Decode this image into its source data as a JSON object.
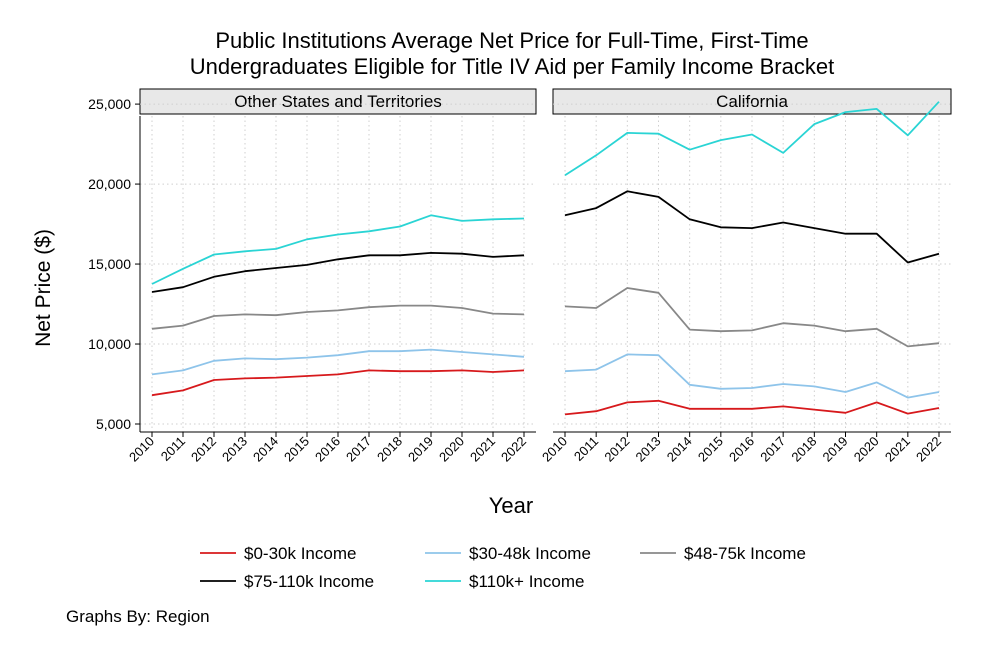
{
  "chart_data": {
    "type": "line",
    "title_line1": "Public Institutions Average Net Price for Full-Time, First-Time",
    "title_line2": "Undergraduates Eligible for Title IV Aid per Family Income Bracket",
    "xlabel": "Year",
    "ylabel": "Net Price ($)",
    "ylim": [
      4500,
      25400
    ],
    "yticks": [
      5000,
      10000,
      15000,
      20000,
      25000
    ],
    "ytick_labels": [
      "5,000",
      "10,000",
      "15,000",
      "20,000",
      "25,000"
    ],
    "x": [
      2010,
      2011,
      2012,
      2013,
      2014,
      2015,
      2016,
      2017,
      2018,
      2019,
      2020,
      2021,
      2022
    ],
    "grid": true,
    "legend_position": "bottom",
    "note": "Graphs By: Region",
    "panels": [
      {
        "name": "Other States and Territories",
        "series": [
          {
            "name": "$0-30k Income",
            "color": "#d7191c",
            "values": [
              6800,
              7100,
              7750,
              7850,
              7900,
              8000,
              8100,
              8350,
              8300,
              8300,
              8350,
              8250,
              8350
            ]
          },
          {
            "name": "$30-48k Income",
            "color": "#8ec4ea",
            "values": [
              8100,
              8350,
              8950,
              9100,
              9050,
              9150,
              9300,
              9550,
              9550,
              9650,
              9500,
              9350,
              9200
            ]
          },
          {
            "name": "$48-75k Income",
            "color": "#888888",
            "values": [
              10950,
              11150,
              11750,
              11850,
              11800,
              12000,
              12100,
              12300,
              12400,
              12400,
              12250,
              11900,
              11850
            ]
          },
          {
            "name": "$75-110k Income",
            "color": "#000000",
            "values": [
              13250,
              13550,
              14200,
              14550,
              14750,
              14950,
              15300,
              15550,
              15550,
              15700,
              15650,
              15450,
              15550
            ]
          },
          {
            "name": "$110k+ Income",
            "color": "#2ad4d4",
            "values": [
              13750,
              14700,
              15600,
              15800,
              15950,
              16550,
              16850,
              17050,
              17350,
              18050,
              17700,
              17800,
              17850
            ]
          }
        ]
      },
      {
        "name": "California",
        "series": [
          {
            "name": "$0-30k Income",
            "color": "#d7191c",
            "values": [
              5600,
              5800,
              6350,
              6450,
              5950,
              5950,
              5950,
              6100,
              5900,
              5700,
              6350,
              5650,
              6000
            ]
          },
          {
            "name": "$30-48k Income",
            "color": "#8ec4ea",
            "values": [
              8300,
              8400,
              9350,
              9300,
              7450,
              7200,
              7250,
              7500,
              7350,
              7000,
              7600,
              6650,
              7000
            ]
          },
          {
            "name": "$48-75k Income",
            "color": "#888888",
            "values": [
              12350,
              12250,
              13500,
              13200,
              10900,
              10800,
              10850,
              11300,
              11150,
              10800,
              10950,
              9850,
              10050
            ]
          },
          {
            "name": "$75-110k Income",
            "color": "#000000",
            "values": [
              18050,
              18500,
              19550,
              19200,
              17800,
              17300,
              17250,
              17600,
              17250,
              16900,
              16900,
              15100,
              15650
            ]
          },
          {
            "name": "$110k+ Income",
            "color": "#2ad4d4",
            "values": [
              20550,
              21800,
              23200,
              23150,
              22150,
              22750,
              23100,
              21950,
              23750,
              24500,
              24700,
              23050,
              25150
            ]
          }
        ]
      }
    ]
  }
}
